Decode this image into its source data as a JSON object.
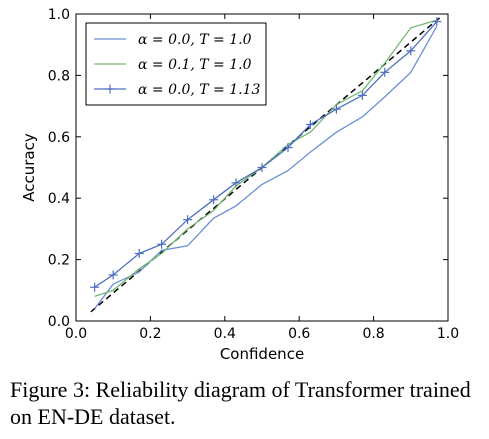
{
  "caption": "Figure 3: Reliability diagram of Transformer trained on EN-DE dataset.",
  "chart_data": {
    "type": "line",
    "xlabel": "Confidence",
    "ylabel": "Accuracy",
    "xlim": [
      0.0,
      1.0
    ],
    "ylim": [
      0.0,
      1.0
    ],
    "xticks": [
      "0.0",
      "0.2",
      "0.4",
      "0.6",
      "0.8",
      "1.0"
    ],
    "yticks": [
      "0.0",
      "0.2",
      "0.4",
      "0.6",
      "0.8",
      "1.0"
    ],
    "grid": false,
    "legend_position": "top-left",
    "diagonal": {
      "style": "dashed",
      "color": "#000000",
      "from": [
        0.04,
        0.03
      ],
      "to": [
        0.98,
        0.99
      ]
    },
    "series": [
      {
        "name": "α = 0.0, T = 1.0",
        "color": "#6b8fd4",
        "marker": "none",
        "x": [
          0.05,
          0.1,
          0.17,
          0.23,
          0.3,
          0.37,
          0.43,
          0.5,
          0.57,
          0.63,
          0.7,
          0.77,
          0.83,
          0.9,
          0.97
        ],
        "y": [
          0.04,
          0.12,
          0.16,
          0.23,
          0.245,
          0.335,
          0.375,
          0.445,
          0.49,
          0.55,
          0.615,
          0.665,
          0.73,
          0.81,
          0.96
        ]
      },
      {
        "name": "α = 0.1, T = 1.0",
        "color": "#71b971",
        "marker": "none",
        "x": [
          0.05,
          0.1,
          0.17,
          0.23,
          0.3,
          0.37,
          0.43,
          0.5,
          0.57,
          0.63,
          0.7,
          0.77,
          0.83,
          0.9,
          0.97
        ],
        "y": [
          0.08,
          0.1,
          0.17,
          0.22,
          0.3,
          0.36,
          0.44,
          0.5,
          0.575,
          0.615,
          0.705,
          0.75,
          0.84,
          0.955,
          0.98
        ]
      },
      {
        "name": "α = 0.0, T = 1.13",
        "color": "#4e6fbf",
        "marker": "+",
        "x": [
          0.05,
          0.1,
          0.17,
          0.23,
          0.3,
          0.37,
          0.43,
          0.5,
          0.57,
          0.63,
          0.7,
          0.77,
          0.83,
          0.9,
          0.97
        ],
        "y": [
          0.11,
          0.15,
          0.22,
          0.25,
          0.33,
          0.395,
          0.45,
          0.5,
          0.565,
          0.64,
          0.69,
          0.735,
          0.81,
          0.88,
          0.975
        ]
      }
    ]
  }
}
